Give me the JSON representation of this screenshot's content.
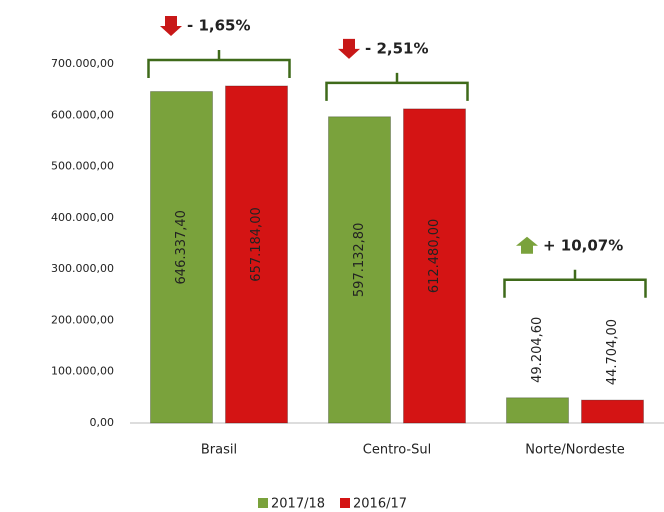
{
  "chart_data": {
    "type": "bar",
    "categories": [
      "Brasil",
      "Centro-Sul",
      "Norte/Nordeste"
    ],
    "series": [
      {
        "name": "2017/18",
        "color": "#7aa23c",
        "values": [
          646337.4,
          597132.8,
          49204.6
        ],
        "value_labels": [
          "646.337,40",
          "597.132,80",
          "49.204,60"
        ]
      },
      {
        "name": "2016/17",
        "color": "#d41414",
        "values": [
          657184,
          612480,
          44704
        ],
        "value_labels": [
          "657.184,00",
          "612.480,00",
          "44.704,00"
        ]
      }
    ],
    "ylim": [
      0,
      700000
    ],
    "yticks": [
      {
        "value": 0,
        "label": "0,00"
      },
      {
        "value": 100000,
        "label": "100.000,00"
      },
      {
        "value": 200000,
        "label": "200.000,00"
      },
      {
        "value": 300000,
        "label": "300.000,00"
      },
      {
        "value": 400000,
        "label": "400.000,00"
      },
      {
        "value": 500000,
        "label": "500.000,00"
      },
      {
        "value": 600000,
        "label": "600.000,00"
      },
      {
        "value": 700000,
        "label": "700.000,00"
      }
    ],
    "grid": false,
    "legend": "bottom",
    "annotations": [
      {
        "text": "- 1,65%",
        "arrow": "down",
        "color": "#c81818"
      },
      {
        "text": "- 2,51%",
        "arrow": "down",
        "color": "#c81818"
      },
      {
        "text": "+ 10,07%",
        "arrow": "up",
        "color": "#7aa23c"
      }
    ]
  }
}
